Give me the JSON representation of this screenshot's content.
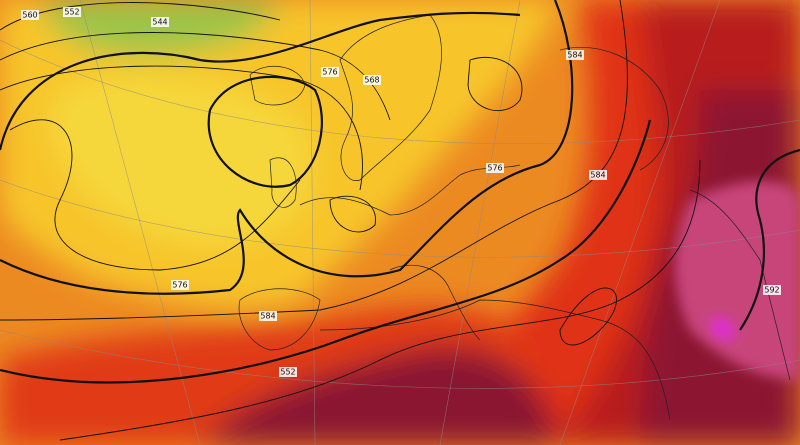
{
  "contour_labels": [
    "560",
    "552",
    "544",
    "576",
    "568",
    "584",
    "576",
    "584",
    "576",
    "584",
    "552",
    "592"
  ]
}
